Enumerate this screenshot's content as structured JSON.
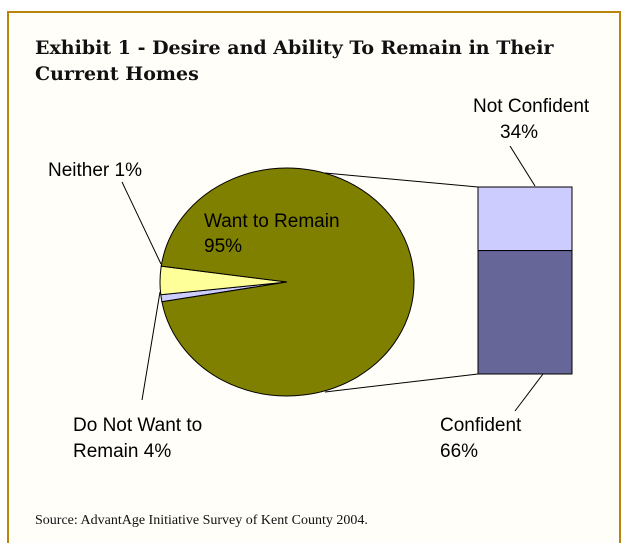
{
  "title": "Exhibit 1 - Desire and Ability To Remain in Their Current Homes",
  "source": "Source:  AdvantAge Initiative Survey of Kent County 2004.",
  "colors": {
    "border": "#b8860b",
    "want_to_remain": "#808000",
    "do_not_want": "#ffff99",
    "neither": "#ccccff",
    "not_confident": "#ccccff",
    "confident": "#666699"
  },
  "chart_data": [
    {
      "type": "pie",
      "slices": [
        {
          "name": "Want to Remain",
          "label_line1": "Want to Remain",
          "label_line2": "95%",
          "value": 95
        },
        {
          "name": "Do Not Want to Remain",
          "label_line1": "Do Not Want to",
          "label_line2": "Remain 4%",
          "value": 4
        },
        {
          "name": "Neither",
          "label_line1": "Neither 1%",
          "label_line2": "",
          "value": 1
        }
      ]
    },
    {
      "type": "bar",
      "stacked": true,
      "segments": [
        {
          "name": "Not Confident",
          "label_line1": "Not Confident",
          "label_line2": "34%",
          "value": 34
        },
        {
          "name": "Confident",
          "label_line1": "Confident",
          "label_line2": "66%",
          "value": 66
        }
      ]
    }
  ]
}
